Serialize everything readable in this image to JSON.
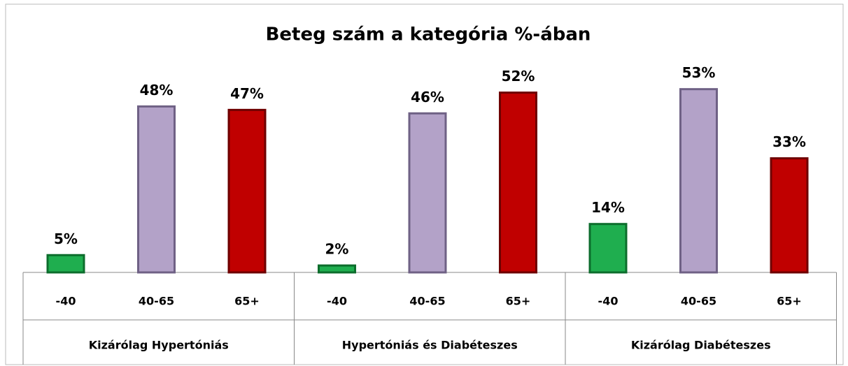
{
  "chart_data": {
    "type": "bar",
    "title": "Beteg szám a kategória %-ában",
    "colors": [
      "#1fae4f",
      "#b3a2c8",
      "#c00000"
    ],
    "groups": [
      {
        "name": "Kizárólag Hypertóniás",
        "categories": [
          "-40",
          "40-65",
          "65+"
        ],
        "values": [
          5,
          48,
          47
        ],
        "value_labels": [
          "5%",
          "48%",
          "47%"
        ]
      },
      {
        "name": "Hypertóniás és Diabéteszes",
        "categories": [
          "-40",
          "40-65",
          "65+"
        ],
        "values": [
          2,
          46,
          52
        ],
        "value_labels": [
          "2%",
          "46%",
          "52%"
        ]
      },
      {
        "name": "Kizárólag Diabéteszes",
        "categories": [
          "-40",
          "40-65",
          "65+"
        ],
        "values": [
          14,
          53,
          33
        ],
        "value_labels": [
          "14%",
          "53%",
          "33%"
        ]
      }
    ]
  }
}
